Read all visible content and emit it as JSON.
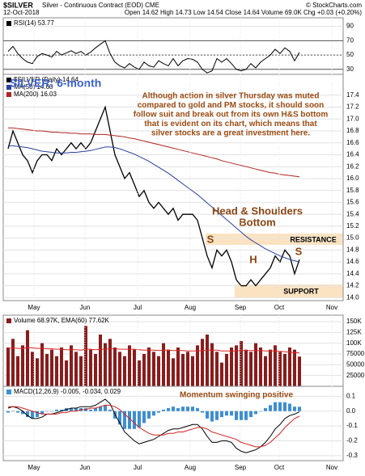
{
  "header": {
    "symbol": "$SILVER",
    "description": "Silver - Continuous Contract (EOD) CME",
    "date": "12-Oct-2018",
    "quote": "Open 14.62 High 14.73 Low 14.54 Close 14.64 Volume 69.0K Chg +0.03 (+0.20%)",
    "source": "© StockCharts.com"
  },
  "chart_data": [
    {
      "type": "line",
      "legend": [
        "RSI(14) 53.77"
      ],
      "ylim": [
        23,
        102
      ],
      "yticks": [
        90,
        70,
        50,
        30
      ],
      "xlim": [
        -1,
        69
      ],
      "reference_lines": [
        70,
        50,
        30
      ],
      "series": [
        {
          "type": "line",
          "color": "#000000",
          "values": [
            55,
            62,
            52,
            45,
            40,
            38,
            48,
            52,
            50,
            47,
            55,
            50,
            53,
            56,
            52,
            55,
            50,
            54,
            60,
            65,
            70,
            52,
            40,
            35,
            32,
            38,
            33,
            30,
            40,
            35,
            33,
            42,
            38,
            35,
            45,
            35,
            42,
            45,
            44,
            40,
            30,
            25,
            28,
            45,
            40,
            45,
            38,
            30,
            28,
            30,
            38,
            32,
            40,
            45,
            50,
            58,
            52,
            60,
            55,
            42,
            53.77
          ]
        }
      ]
    },
    {
      "type": "line",
      "title": "SILVER: 6-month",
      "legend": [
        "$SILVER (Daily) 14.64",
        "MA(50) 14.60",
        "MA(200) 16.03"
      ],
      "ylim": [
        13.95,
        17.75
      ],
      "xlim": [
        -1,
        69
      ],
      "yticks": [
        17.4,
        17.2,
        {
          "value": 17,
          "label": "17.0"
        },
        16.8,
        16.6,
        16.4,
        16.2,
        {
          "value": 16,
          "label": "16.0"
        },
        15.8,
        15.6,
        15.4,
        15.2,
        {
          "value": 15,
          "label": "15.0"
        },
        14.8,
        14.6,
        14.4,
        14.2,
        {
          "value": 14,
          "label": "14.0"
        }
      ],
      "xticks": [
        {
          "value": 5.33,
          "label": "May"
        },
        {
          "value": 15.83,
          "label": "Jun"
        },
        {
          "value": 26.67,
          "label": "Jul"
        },
        {
          "value": 37.5,
          "label": "Aug"
        },
        {
          "value": 47.83,
          "label": "Sep"
        },
        {
          "value": 55.83,
          "label": "Oct"
        },
        {
          "value": 66.67,
          "label": "Nov"
        }
      ],
      "series": [
        {
          "type": "line",
          "color": "#000000",
          "values": [
            16.5,
            16.8,
            16.6,
            16.4,
            16.3,
            16.1,
            16.3,
            16.4,
            16.4,
            16.3,
            16.5,
            16.4,
            16.5,
            16.6,
            16.5,
            16.6,
            16.5,
            16.6,
            16.8,
            17.0,
            17.2,
            16.8,
            16.4,
            16.2,
            16.0,
            16.1,
            15.9,
            15.7,
            15.8,
            15.6,
            15.5,
            15.6,
            15.5,
            15.4,
            15.5,
            15.3,
            15.4,
            15.4,
            15.4,
            15.3,
            15.0,
            14.7,
            14.5,
            14.8,
            14.7,
            14.8,
            14.6,
            14.3,
            14.2,
            14.2,
            14.3,
            14.2,
            14.3,
            14.4,
            14.5,
            14.7,
            14.6,
            14.8,
            14.7,
            14.4,
            14.64
          ]
        },
        {
          "type": "line",
          "color": "#2b3f9e",
          "values": [
            16.55,
            16.55,
            16.54,
            16.53,
            16.52,
            16.5,
            16.48,
            16.46,
            16.45,
            16.44,
            16.43,
            16.43,
            16.43,
            16.44,
            16.44,
            16.45,
            16.46,
            16.47,
            16.49,
            16.51,
            16.53,
            16.53,
            16.52,
            16.5,
            16.47,
            16.44,
            16.41,
            16.37,
            16.33,
            16.29,
            16.24,
            16.19,
            16.14,
            16.09,
            16.03,
            15.97,
            15.91,
            15.85,
            15.79,
            15.73,
            15.66,
            15.59,
            15.52,
            15.45,
            15.38,
            15.31,
            15.24,
            15.17,
            15.1,
            15.03,
            14.97,
            14.92,
            14.87,
            14.82,
            14.78,
            14.74,
            14.7,
            14.67,
            14.64,
            14.62,
            14.6
          ]
        },
        {
          "type": "line",
          "color": "#b22222",
          "values": [
            16.85,
            16.85,
            16.84,
            16.83,
            16.82,
            16.81,
            16.8,
            16.8,
            16.79,
            16.78,
            16.78,
            16.77,
            16.77,
            16.76,
            16.76,
            16.75,
            16.75,
            16.75,
            16.74,
            16.74,
            16.74,
            16.73,
            16.72,
            16.71,
            16.7,
            16.68,
            16.67,
            16.65,
            16.63,
            16.61,
            16.59,
            16.57,
            16.55,
            16.53,
            16.51,
            16.49,
            16.47,
            16.45,
            16.43,
            16.41,
            16.39,
            16.37,
            16.35,
            16.33,
            16.3,
            16.28,
            16.26,
            16.24,
            16.22,
            16.2,
            16.18,
            16.16,
            16.14,
            16.12,
            16.1,
            16.09,
            16.07,
            16.06,
            16.05,
            16.04,
            16.03
          ]
        }
      ],
      "annotations": {
        "note": [
          "Although action in silver Thursday was muted",
          "compared to gold and PM stocks, it should soon",
          "follow suit and break out from its own H&S bottom",
          "that is evident on its chart, which means that",
          "silver stocks are a great investment here."
        ],
        "pattern": [
          "Head & Shoulders",
          "Bottom"
        ],
        "left_shoulder": "S",
        "head": "H",
        "right_shoulder": "S",
        "resistance": "RESISTANCE",
        "support": "SUPPORT"
      }
    },
    {
      "type": "bar",
      "legend": [
        "Volume 68.97K, EMA(60) 77.62K"
      ],
      "ylim": [
        0,
        165000
      ],
      "xlim": [
        -1,
        69
      ],
      "yticks": [
        {
          "value": 150000,
          "label": "150K"
        },
        {
          "value": 125000,
          "label": "125K"
        },
        {
          "value": 100000,
          "label": "100K"
        },
        75000,
        50000,
        25000
      ],
      "series": [
        {
          "type": "bar",
          "color": "#8a1c1c",
          "values": [
            90000,
            110000,
            70000,
            95000,
            130000,
            80000,
            65000,
            100000,
            75000,
            85000,
            70000,
            90000,
            60000,
            95000,
            80000,
            70000,
            140000,
            85000,
            75000,
            120000,
            100000,
            110000,
            90000,
            80000,
            70000,
            95000,
            85000,
            60000,
            75000,
            90000,
            80000,
            70000,
            100000,
            85000,
            65000,
            90000,
            75000,
            80000,
            70000,
            95000,
            110000,
            120000,
            100000,
            80000,
            55000,
            75000,
            90000,
            95000,
            105000,
            85000,
            80000,
            100000,
            90000,
            70000,
            85000,
            95000,
            80000,
            75000,
            90000,
            85000,
            68970
          ]
        },
        {
          "type": "line",
          "color": "#dd2222",
          "values": [
            88000,
            89000,
            88000,
            88000,
            90000,
            89000,
            88000,
            88000,
            87000,
            87000,
            86000,
            86000,
            85000,
            85000,
            85000,
            84000,
            86000,
            86000,
            85000,
            86000,
            86000,
            87000,
            87000,
            86000,
            86000,
            86000,
            86000,
            85000,
            84000,
            84000,
            84000,
            83000,
            84000,
            84000,
            83000,
            83000,
            83000,
            82000,
            82000,
            82000,
            83000,
            84000,
            84000,
            84000,
            82000,
            82000,
            82000,
            82000,
            83000,
            83000,
            83000,
            83000,
            83000,
            82000,
            82000,
            82000,
            81000,
            80000,
            79000,
            78000,
            77620
          ]
        }
      ]
    },
    {
      "type": "line",
      "legend": [
        "MACD(12,26,9) -0.005, -0.034, 0.029"
      ],
      "annotation": "Momentum swinging positive",
      "ylim": [
        -0.333,
        0.167
      ],
      "xlim": [
        -1,
        69
      ],
      "yticks": [
        0.1,
        {
          "value": 0,
          "label": "0.0"
        },
        -0.1,
        -0.2,
        -0.3
      ],
      "xticks": [
        {
          "value": 5.33,
          "label": "May"
        },
        {
          "value": 15.83,
          "label": "Jun"
        },
        {
          "value": 26.67,
          "label": "Jul"
        },
        {
          "value": 37.5,
          "label": "Aug"
        },
        {
          "value": 47.83,
          "label": "Sep"
        },
        {
          "value": 55.83,
          "label": "Oct"
        },
        {
          "value": 66.67,
          "label": "Nov"
        }
      ],
      "series": [
        {
          "type": "bar",
          "color": "#3d8fd1",
          "values": [
            -0.01,
            0,
            -0.01,
            -0.02,
            -0.04,
            -0.05,
            -0.04,
            -0.02,
            0,
            0,
            0.01,
            0.01,
            0.02,
            0.02,
            0.02,
            0.02,
            0.02,
            0.01,
            0.02,
            0.03,
            0.04,
            0.01,
            -0.05,
            -0.09,
            -0.12,
            -0.12,
            -0.12,
            -0.11,
            -0.08,
            -0.05,
            -0.03,
            -0.01,
            0.01,
            0.02,
            0.03,
            0.02,
            0.03,
            0.03,
            0.03,
            0.02,
            -0.01,
            -0.05,
            -0.07,
            -0.06,
            -0.04,
            -0.03,
            -0.03,
            -0.06,
            -0.06,
            -0.06,
            -0.04,
            -0.02,
            0,
            0.02,
            0.04,
            0.06,
            0.06,
            0.06,
            0.05,
            0.03,
            0.029
          ]
        },
        {
          "type": "line",
          "color": "#000000",
          "values": [
            0.02,
            0.03,
            0.02,
            0.0,
            -0.03,
            -0.05,
            -0.05,
            -0.04,
            -0.02,
            -0.02,
            -0.01,
            0.0,
            0.01,
            0.02,
            0.02,
            0.03,
            0.03,
            0.03,
            0.04,
            0.06,
            0.08,
            0.05,
            -0.02,
            -0.08,
            -0.14,
            -0.17,
            -0.2,
            -0.22,
            -0.21,
            -0.2,
            -0.19,
            -0.17,
            -0.15,
            -0.13,
            -0.12,
            -0.12,
            -0.11,
            -0.1,
            -0.09,
            -0.09,
            -0.12,
            -0.17,
            -0.21,
            -0.21,
            -0.2,
            -0.2,
            -0.21,
            -0.25,
            -0.27,
            -0.28,
            -0.27,
            -0.26,
            -0.24,
            -0.21,
            -0.17,
            -0.12,
            -0.09,
            -0.05,
            -0.03,
            -0.02,
            -0.005
          ]
        },
        {
          "type": "line",
          "color": "#d42020",
          "values": [
            0.03,
            0.03,
            0.03,
            0.02,
            0.01,
            0.0,
            -0.01,
            -0.02,
            -0.02,
            -0.02,
            -0.02,
            -0.01,
            -0.01,
            0.0,
            0.0,
            0.01,
            0.01,
            0.02,
            0.02,
            0.03,
            0.04,
            0.04,
            0.03,
            0.01,
            -0.02,
            -0.05,
            -0.08,
            -0.11,
            -0.13,
            -0.15,
            -0.16,
            -0.16,
            -0.16,
            -0.15,
            -0.15,
            -0.14,
            -0.14,
            -0.13,
            -0.12,
            -0.11,
            -0.11,
            -0.12,
            -0.14,
            -0.15,
            -0.16,
            -0.17,
            -0.18,
            -0.19,
            -0.21,
            -0.22,
            -0.23,
            -0.24,
            -0.24,
            -0.23,
            -0.21,
            -0.18,
            -0.15,
            -0.11,
            -0.08,
            -0.05,
            -0.034
          ]
        }
      ]
    }
  ]
}
